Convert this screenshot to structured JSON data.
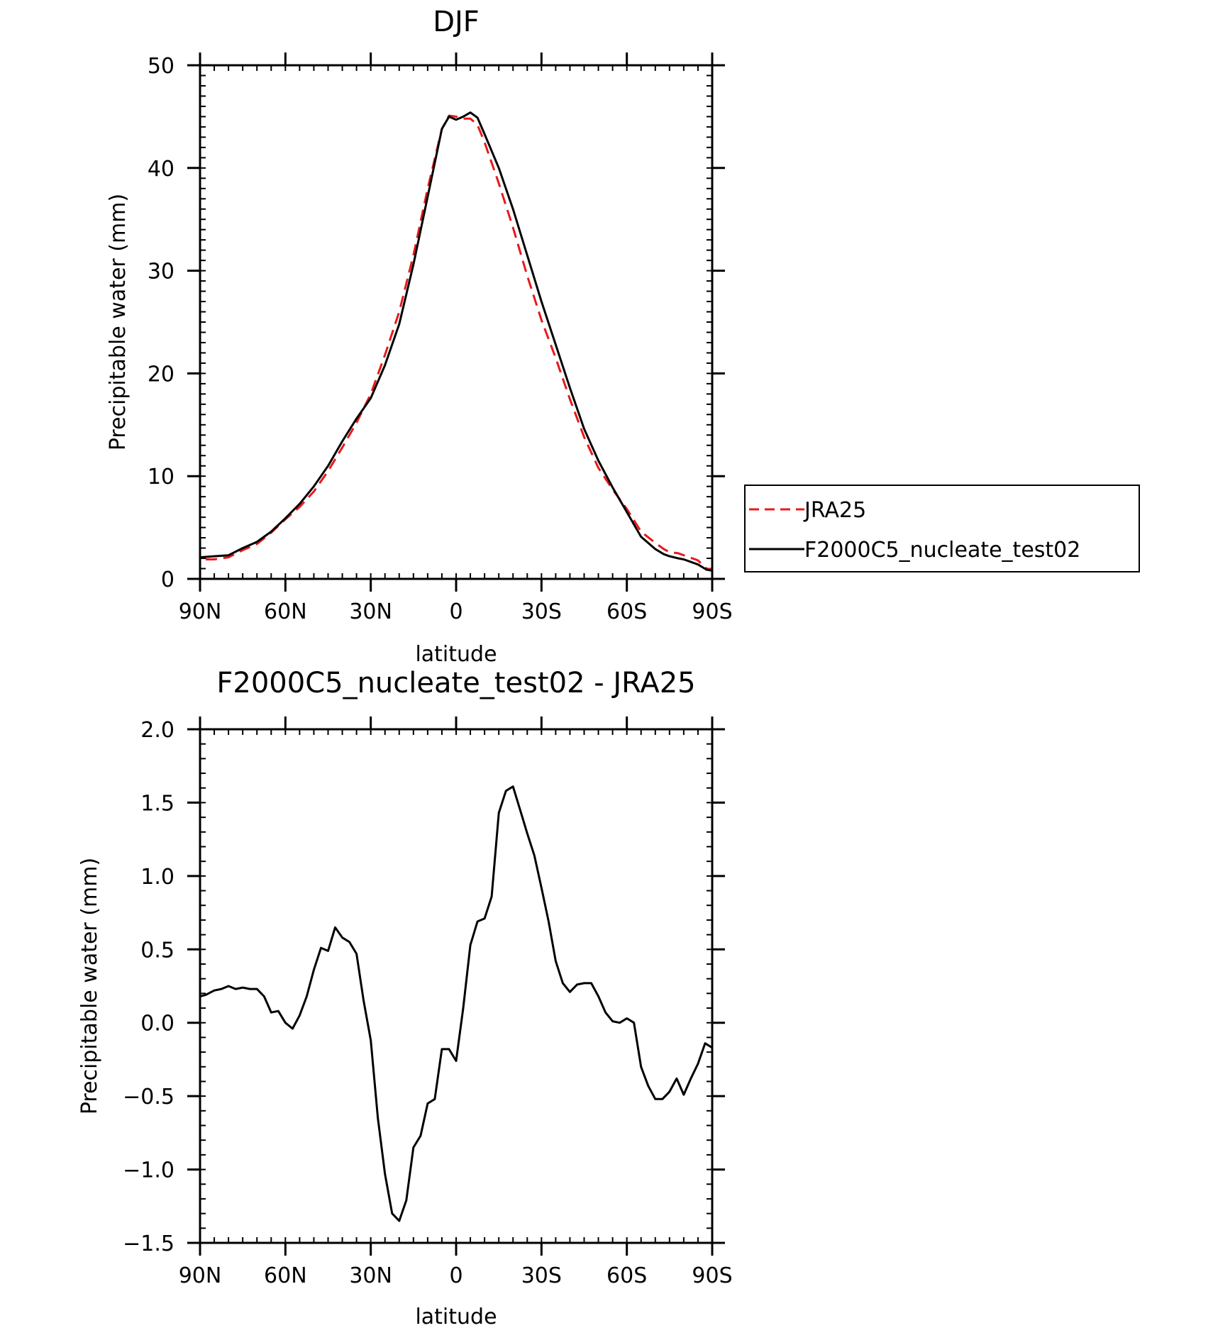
{
  "chart_data": [
    {
      "type": "line",
      "title": "DJF",
      "xlabel": "latitude",
      "ylabel": "Precipitable water (mm)",
      "xlim": [
        90,
        -90
      ],
      "ylim": [
        0,
        50
      ],
      "xticks": [
        {
          "value": 90,
          "label": "90N"
        },
        {
          "value": 60,
          "label": "60N"
        },
        {
          "value": 30,
          "label": "30N"
        },
        {
          "value": 0,
          "label": "0"
        },
        {
          "value": -30,
          "label": "30S"
        },
        {
          "value": -60,
          "label": "60S"
        },
        {
          "value": -90,
          "label": "90S"
        }
      ],
      "yticks": [
        {
          "value": 0,
          "label": "0"
        },
        {
          "value": 10,
          "label": "10"
        },
        {
          "value": 20,
          "label": "20"
        },
        {
          "value": 30,
          "label": "30"
        },
        {
          "value": 40,
          "label": "40"
        },
        {
          "value": 50,
          "label": "50"
        }
      ],
      "legend_position": "right",
      "series": [
        {
          "name": "JRA25",
          "color": "#e8191c",
          "dash": "dashed",
          "x": [
            88,
            85,
            80,
            75,
            70,
            65,
            60,
            55,
            50,
            45,
            40,
            35,
            30,
            25,
            20,
            15,
            10,
            5,
            2.5,
            0,
            -2.5,
            -5,
            -7.5,
            -10,
            -15,
            -20,
            -25,
            -30,
            -35,
            -40,
            -45,
            -50,
            -55,
            -60,
            -65,
            -70,
            -73,
            -75,
            -78,
            -80,
            -85,
            -88,
            -90
          ],
          "y": [
            1.9,
            1.9,
            2.1,
            2.8,
            3.4,
            4.5,
            5.8,
            7.0,
            8.5,
            10.5,
            12.8,
            15.2,
            18.0,
            21.8,
            26.0,
            31.5,
            38.0,
            43.8,
            45.1,
            45.0,
            44.8,
            44.8,
            44.2,
            42.5,
            38.5,
            34.2,
            29.5,
            25.2,
            21.5,
            17.5,
            13.8,
            10.8,
            8.7,
            6.8,
            4.6,
            3.5,
            2.9,
            2.6,
            2.5,
            2.3,
            1.8,
            1.0,
            0.9
          ]
        },
        {
          "name": "F2000C5_nucleate_test02",
          "color": "#000000",
          "dash": "solid",
          "x": [
            90,
            85,
            80,
            75,
            70,
            65,
            60,
            55,
            50,
            45,
            40,
            35,
            30,
            25,
            20,
            15,
            10,
            5,
            2.5,
            0,
            -2.5,
            -5,
            -7.5,
            -10,
            -15,
            -20,
            -25,
            -30,
            -35,
            -40,
            -45,
            -50,
            -55,
            -60,
            -65,
            -70,
            -73,
            -75,
            -78,
            -80,
            -85,
            -88,
            -90
          ],
          "y": [
            2.1,
            2.2,
            2.3,
            3.0,
            3.6,
            4.6,
            5.9,
            7.3,
            9.0,
            11.0,
            13.4,
            15.6,
            17.6,
            20.8,
            24.8,
            30.6,
            37.2,
            43.8,
            45.0,
            44.7,
            45.0,
            45.4,
            44.9,
            43.3,
            40.0,
            36.0,
            31.5,
            27.0,
            22.8,
            18.6,
            14.6,
            11.5,
            8.9,
            6.5,
            4.1,
            2.9,
            2.4,
            2.2,
            2.0,
            1.9,
            1.4,
            0.9,
            0.8
          ]
        }
      ]
    },
    {
      "type": "line",
      "title": "F2000C5_nucleate_test02 - JRA25",
      "xlabel": "latitude",
      "ylabel": "Precipitable water (mm)",
      "xlim": [
        90,
        -90
      ],
      "ylim": [
        -1.5,
        2.0
      ],
      "xticks": [
        {
          "value": 90,
          "label": "90N"
        },
        {
          "value": 60,
          "label": "60N"
        },
        {
          "value": 30,
          "label": "30N"
        },
        {
          "value": 0,
          "label": "0"
        },
        {
          "value": -30,
          "label": "30S"
        },
        {
          "value": -60,
          "label": "60S"
        },
        {
          "value": -90,
          "label": "90S"
        }
      ],
      "yticks": [
        {
          "value": -1.5,
          "label": "−1.5"
        },
        {
          "value": -1.0,
          "label": "−1.0"
        },
        {
          "value": -0.5,
          "label": "−0.5"
        },
        {
          "value": 0.0,
          "label": "0.0"
        },
        {
          "value": 0.5,
          "label": "0.5"
        },
        {
          "value": 1.0,
          "label": "1.0"
        },
        {
          "value": 1.5,
          "label": "1.5"
        },
        {
          "value": 2.0,
          "label": "2.0"
        }
      ],
      "series": [
        {
          "color": "#000000",
          "x": [
            90,
            88,
            85,
            82.5,
            80,
            77.5,
            75,
            72.5,
            70,
            67.5,
            65,
            62.5,
            60,
            57.5,
            55,
            52.5,
            50,
            47.5,
            45,
            42.5,
            40,
            37.5,
            35,
            32.5,
            30,
            27.5,
            25,
            22.5,
            20,
            17.5,
            15,
            12.5,
            10,
            7.5,
            5,
            2.5,
            0,
            -2.5,
            -5,
            -7.5,
            -10,
            -12.5,
            -15,
            -17.5,
            -20,
            -22.5,
            -25,
            -27.5,
            -30,
            -32.5,
            -35,
            -37.5,
            -40,
            -42.5,
            -45,
            -47.5,
            -50,
            -52.5,
            -55,
            -57.5,
            -60,
            -62.5,
            -65,
            -67.5,
            -70,
            -72.5,
            -75,
            -77.5,
            -80,
            -82.5,
            -85,
            -87.5,
            -90
          ],
          "y": [
            0.18,
            0.19,
            0.22,
            0.23,
            0.25,
            0.23,
            0.24,
            0.23,
            0.23,
            0.18,
            0.07,
            0.08,
            0.0,
            -0.04,
            0.05,
            0.18,
            0.36,
            0.51,
            0.49,
            0.65,
            0.58,
            0.55,
            0.47,
            0.15,
            -0.12,
            -0.65,
            -1.03,
            -1.3,
            -1.35,
            -1.21,
            -0.85,
            -0.77,
            -0.55,
            -0.52,
            -0.18,
            -0.18,
            -0.26,
            0.1,
            0.53,
            0.69,
            0.71,
            0.86,
            1.43,
            1.58,
            1.61,
            1.45,
            1.29,
            1.14,
            0.92,
            0.69,
            0.42,
            0.27,
            0.21,
            0.26,
            0.27,
            0.27,
            0.18,
            0.07,
            0.01,
            0.0,
            0.03,
            0.0,
            -0.3,
            -0.43,
            -0.52,
            -0.52,
            -0.47,
            -0.38,
            -0.49,
            -0.38,
            -0.28,
            -0.14,
            -0.17
          ]
        }
      ]
    }
  ]
}
